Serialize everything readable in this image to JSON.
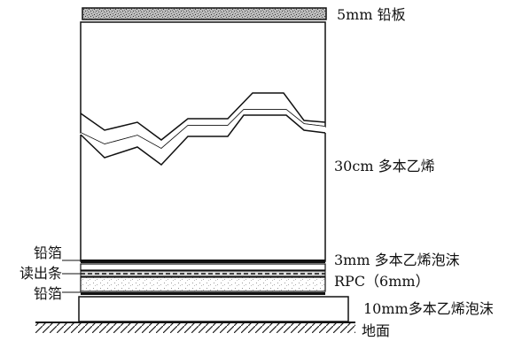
{
  "layers": {
    "lead_plate": "5mm 铅板",
    "polystyrene": "30cm 多本乙烯",
    "foam_3mm": "3mm 多本乙烯泡沫",
    "rpc": "RPC（6mm）",
    "foam_10mm": "10mm多本乙烯泡沫",
    "ground": "地面"
  },
  "left_labels": {
    "foil_top": "铅箔",
    "readout": "读出条",
    "foil_bottom": "铅箔"
  }
}
